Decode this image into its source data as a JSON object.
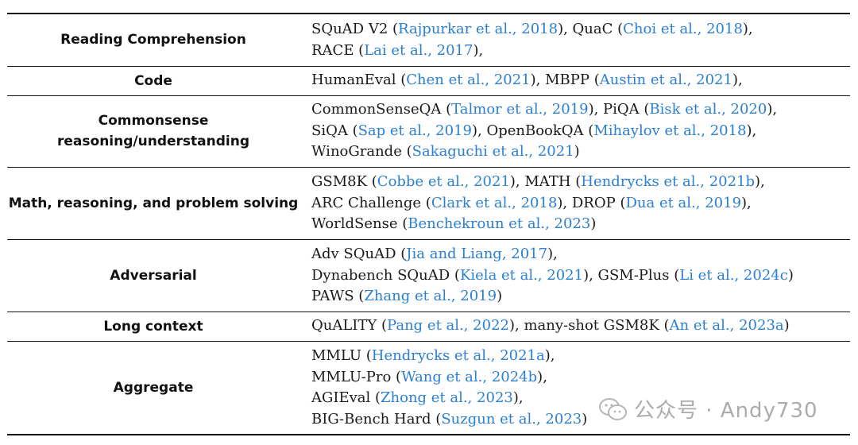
{
  "rows": [
    {
      "category": "Reading Comprehension",
      "lines": [
        [
          {
            "t": "SQuAD V2 ("
          },
          {
            "c": "Rajpurkar et al., 2018"
          },
          {
            "t": "), QuaC ("
          },
          {
            "c": "Choi et al., 2018"
          },
          {
            "t": "),"
          }
        ],
        [
          {
            "t": "RACE ("
          },
          {
            "c": "Lai et al., 2017"
          },
          {
            "t": "),"
          }
        ]
      ]
    },
    {
      "category": "Code",
      "lines": [
        [
          {
            "t": "HumanEval ("
          },
          {
            "c": "Chen et al., 2021"
          },
          {
            "t": "), MBPP ("
          },
          {
            "c": "Austin et al., 2021"
          },
          {
            "t": "),"
          }
        ]
      ]
    },
    {
      "category": "Commonsense reasoning/understanding",
      "lines": [
        [
          {
            "t": "CommonSenseQA ("
          },
          {
            "c": "Talmor et al., 2019"
          },
          {
            "t": "), PiQA ("
          },
          {
            "c": "Bisk et al., 2020"
          },
          {
            "t": "),"
          }
        ],
        [
          {
            "t": "SiQA ("
          },
          {
            "c": "Sap et al., 2019"
          },
          {
            "t": "), OpenBookQA ("
          },
          {
            "c": "Mihaylov et al., 2018"
          },
          {
            "t": "),"
          }
        ],
        [
          {
            "t": "WinoGrande ("
          },
          {
            "c": "Sakaguchi et al., 2021"
          },
          {
            "t": ")"
          }
        ]
      ]
    },
    {
      "category": "Math, reasoning, and problem solving",
      "lines": [
        [
          {
            "t": "GSM8K ("
          },
          {
            "c": "Cobbe et al., 2021"
          },
          {
            "t": "), MATH ("
          },
          {
            "c": "Hendrycks et al., 2021b"
          },
          {
            "t": "),"
          }
        ],
        [
          {
            "t": "ARC Challenge ("
          },
          {
            "c": "Clark et al., 2018"
          },
          {
            "t": "), DROP ("
          },
          {
            "c": "Dua et al., 2019"
          },
          {
            "t": "),"
          }
        ],
        [
          {
            "t": "WorldSense ("
          },
          {
            "c": "Benchekroun et al., 2023"
          },
          {
            "t": ")"
          }
        ]
      ]
    },
    {
      "category": "Adversarial",
      "lines": [
        [
          {
            "t": "Adv SQuAD ("
          },
          {
            "c": "Jia and Liang, 2017"
          },
          {
            "t": "),"
          }
        ],
        [
          {
            "t": "Dynabench SQuAD ("
          },
          {
            "c": "Kiela et al., 2021"
          },
          {
            "t": "), GSM-Plus ("
          },
          {
            "c": "Li et al., 2024c"
          },
          {
            "t": ")"
          }
        ],
        [
          {
            "t": "PAWS ("
          },
          {
            "c": "Zhang et al., 2019"
          },
          {
            "t": ")"
          }
        ]
      ]
    },
    {
      "category": "Long context",
      "lines": [
        [
          {
            "t": "QuALITY ("
          },
          {
            "c": "Pang et al., 2022"
          },
          {
            "t": "), many-shot GSM8K ("
          },
          {
            "c": "An et al., 2023a"
          },
          {
            "t": ")"
          }
        ]
      ]
    },
    {
      "category": "Aggregate",
      "lines": [
        [
          {
            "t": "MMLU ("
          },
          {
            "c": "Hendrycks et al., 2021a"
          },
          {
            "t": "),"
          }
        ],
        [
          {
            "t": "MMLU-Pro ("
          },
          {
            "c": "Wang et al., 2024b"
          },
          {
            "t": "),"
          }
        ],
        [
          {
            "t": "AGIEval ("
          },
          {
            "c": "Zhong et al., 2023"
          },
          {
            "t": "),"
          }
        ],
        [
          {
            "t": "BIG-Bench Hard ("
          },
          {
            "c": "Suzgun et al., 2023"
          },
          {
            "t": ")"
          }
        ]
      ]
    }
  ],
  "watermark": {
    "text": "公众号 · Andy730",
    "icon": "wechat-icon"
  },
  "colors": {
    "citation": "#2a7fd4",
    "text": "#1a1a1a",
    "rule": "#111111"
  }
}
